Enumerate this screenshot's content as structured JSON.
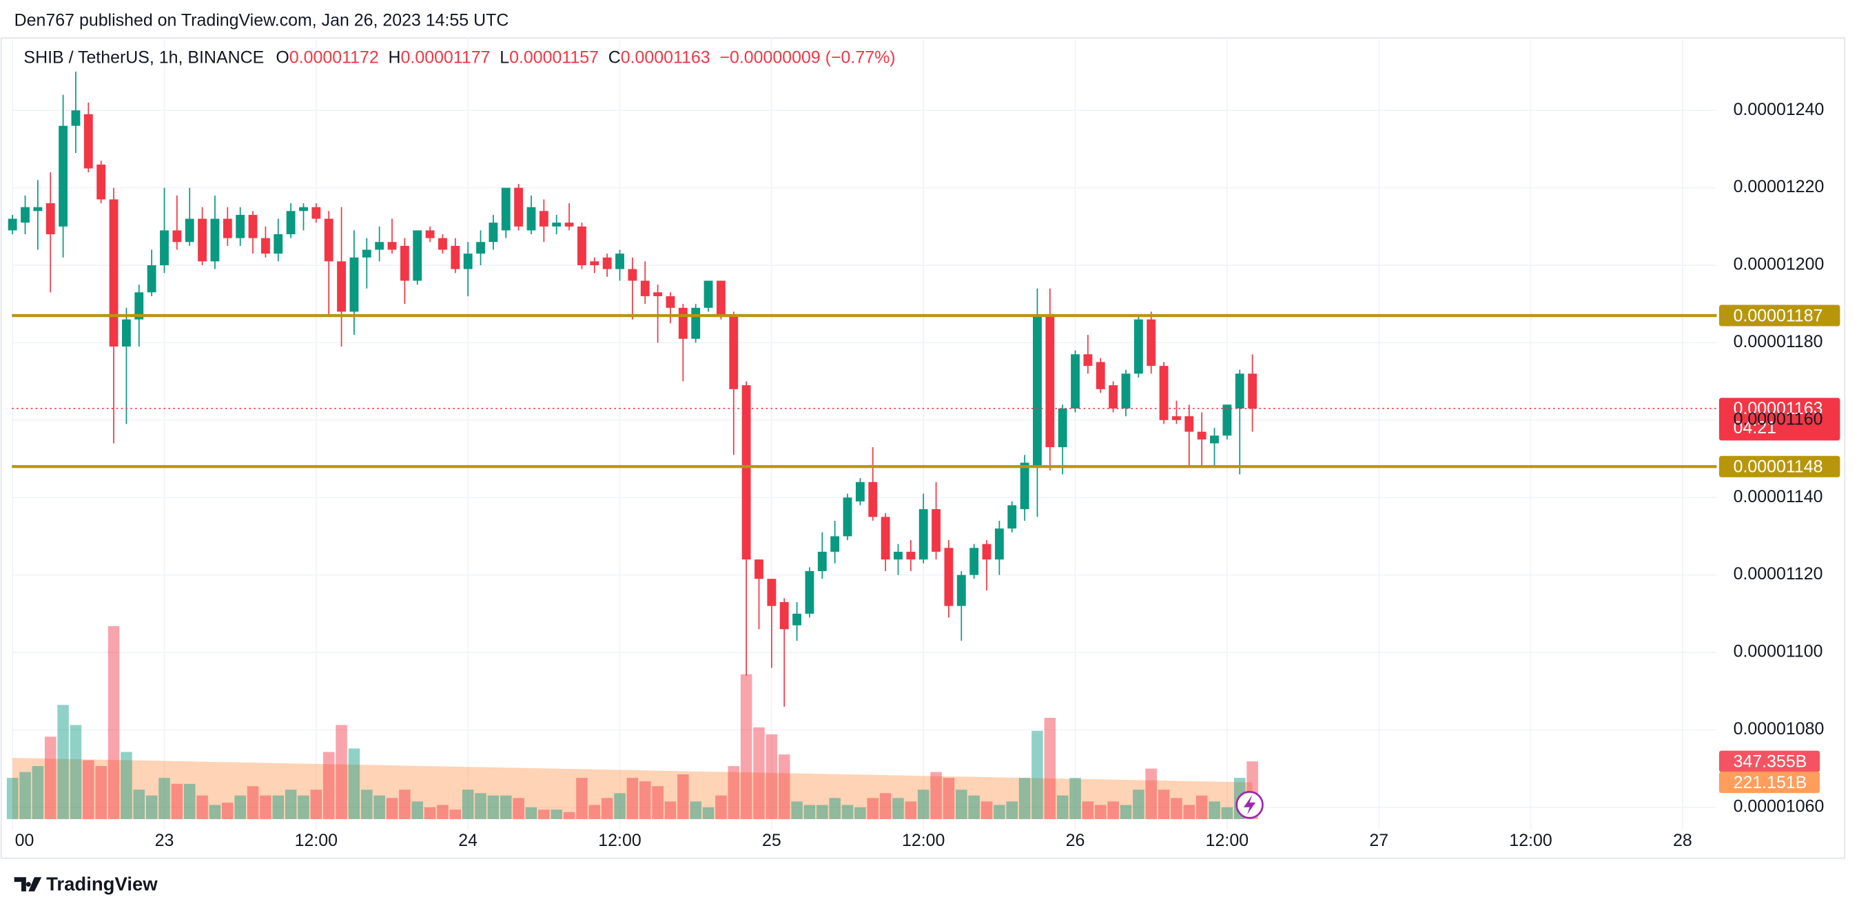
{
  "header": {
    "published": "Den767 published on TradingView.com, Jan 26, 2023 14:55 UTC"
  },
  "chart_data": {
    "type": "candlestick",
    "symbol": "SHIB / TetherUS, 1h, BINANCE",
    "legend": [
      {
        "key": "O",
        "value": "0.00001172"
      },
      {
        "key": "H",
        "value": "0.00001177"
      },
      {
        "key": "L",
        "value": "0.00001157"
      },
      {
        "key": "C",
        "value": "0.00001163"
      }
    ],
    "change": "−0.00000009 (−0.77%)",
    "up_color": "#089981",
    "down_color": "#f23645",
    "grid": true,
    "x": [
      0,
      1,
      2,
      3,
      4,
      5,
      6,
      7,
      8,
      9,
      10,
      11,
      12,
      13,
      14,
      15,
      16,
      17,
      18,
      19,
      20,
      21,
      22,
      23,
      24,
      25,
      26,
      27,
      28,
      29,
      30,
      31,
      32,
      33,
      34,
      35,
      36,
      37,
      38,
      39,
      40,
      41,
      42,
      43,
      44,
      45,
      46,
      47,
      48,
      49,
      50,
      51,
      52,
      53,
      54,
      55,
      56,
      57,
      58,
      59,
      60,
      61,
      62,
      63,
      64,
      65,
      66,
      67,
      68,
      69,
      70,
      71,
      72,
      73,
      74,
      75,
      76,
      77,
      78,
      79,
      80,
      81,
      82,
      83,
      84,
      85,
      86,
      87,
      88,
      89,
      90,
      91,
      92,
      93,
      94,
      95,
      96,
      97,
      98
    ],
    "open": [
      1.209e-05,
      1.211e-05,
      1.214e-05,
      1.216e-05,
      1.21e-05,
      1.236e-05,
      1.239e-05,
      1.226e-05,
      1.217e-05,
      1.179e-05,
      1.186e-05,
      1.193e-05,
      1.2e-05,
      1.209e-05,
      1.206e-05,
      1.212e-05,
      1.201e-05,
      1.212e-05,
      1.207e-05,
      1.213e-05,
      1.207e-05,
      1.203e-05,
      1.208e-05,
      1.214e-05,
      1.215e-05,
      1.212e-05,
      1.201e-05,
      1.188e-05,
      1.202e-05,
      1.204e-05,
      1.206e-05,
      1.205e-05,
      1.196e-05,
      1.209e-05,
      1.207e-05,
      1.205e-05,
      1.199e-05,
      1.203e-05,
      1.206e-05,
      1.209e-05,
      1.22e-05,
      1.209e-05,
      1.214e-05,
      1.21e-05,
      1.211e-05,
      1.21e-05,
      1.201e-05,
      1.202e-05,
      1.199e-05,
      1.199e-05,
      1.196e-05,
      1.193e-05,
      1.192e-05,
      1.189e-05,
      1.181e-05,
      1.189e-05,
      1.196e-05,
      1.187e-05,
      1.169e-05,
      1.124e-05,
      1.119e-05,
      1.113e-05,
      1.107e-05,
      1.11e-05,
      1.121e-05,
      1.126e-05,
      1.13e-05,
      1.139e-05,
      1.144e-05,
      1.135e-05,
      1.124e-05,
      1.126e-05,
      1.124e-05,
      1.137e-05,
      1.127e-05,
      1.112e-05,
      1.12e-05,
      1.128e-05,
      1.124e-05,
      1.132e-05,
      1.137e-05,
      1.148e-05,
      1.187e-05,
      1.153e-05,
      1.163e-05,
      1.177e-05,
      1.175e-05,
      1.169e-05,
      1.163e-05,
      1.172e-05,
      1.186e-05,
      1.174e-05,
      1.161e-05,
      1.161e-05,
      1.157e-05,
      1.154e-05,
      1.156e-05,
      1.163e-05,
      1.172e-05
    ],
    "high": [
      1.213e-05,
      1.218e-05,
      1.222e-05,
      1.224e-05,
      1.244e-05,
      1.25e-05,
      1.242e-05,
      1.227e-05,
      1.22e-05,
      1.189e-05,
      1.195e-05,
      1.204e-05,
      1.22e-05,
      1.218e-05,
      1.22e-05,
      1.215e-05,
      1.218e-05,
      1.215e-05,
      1.215e-05,
      1.214e-05,
      1.21e-05,
      1.212e-05,
      1.216e-05,
      1.216e-05,
      1.216e-05,
      1.214e-05,
      1.215e-05,
      1.209e-05,
      1.207e-05,
      1.21e-05,
      1.212e-05,
      1.207e-05,
      1.209e-05,
      1.21e-05,
      1.208e-05,
      1.207e-05,
      1.206e-05,
      1.209e-05,
      1.213e-05,
      1.22e-05,
      1.221e-05,
      1.218e-05,
      1.217e-05,
      1.213e-05,
      1.216e-05,
      1.211e-05,
      1.202e-05,
      1.203e-05,
      1.204e-05,
      1.202e-05,
      1.201e-05,
      1.195e-05,
      1.193e-05,
      1.19e-05,
      1.19e-05,
      1.196e-05,
      1.196e-05,
      1.188e-05,
      1.17e-05,
      1.124e-05,
      1.119e-05,
      1.114e-05,
      1.113e-05,
      1.122e-05,
      1.131e-05,
      1.134e-05,
      1.141e-05,
      1.145e-05,
      1.153e-05,
      1.136e-05,
      1.128e-05,
      1.129e-05,
      1.141e-05,
      1.144e-05,
      1.129e-05,
      1.121e-05,
      1.128e-05,
      1.129e-05,
      1.134e-05,
      1.139e-05,
      1.151e-05,
      1.194e-05,
      1.194e-05,
      1.164e-05,
      1.178e-05,
      1.182e-05,
      1.176e-05,
      1.17e-05,
      1.173e-05,
      1.187e-05,
      1.188e-05,
      1.175e-05,
      1.165e-05,
      1.164e-05,
      1.162e-05,
      1.158e-05,
      1.164e-05,
      1.173e-05,
      1.177e-05
    ],
    "low": [
      1.208e-05,
      1.208e-05,
      1.204e-05,
      1.193e-05,
      1.202e-05,
      1.229e-05,
      1.224e-05,
      1.216e-05,
      1.154e-05,
      1.159e-05,
      1.179e-05,
      1.192e-05,
      1.198e-05,
      1.204e-05,
      1.205e-05,
      1.2e-05,
      1.199e-05,
      1.205e-05,
      1.205e-05,
      1.203e-05,
      1.202e-05,
      1.201e-05,
      1.207e-05,
      1.209e-05,
      1.211e-05,
      1.187e-05,
      1.179e-05,
      1.182e-05,
      1.194e-05,
      1.201e-05,
      1.203e-05,
      1.19e-05,
      1.195e-05,
      1.206e-05,
      1.203e-05,
      1.198e-05,
      1.192e-05,
      1.2e-05,
      1.204e-05,
      1.207e-05,
      1.209e-05,
      1.208e-05,
      1.206e-05,
      1.208e-05,
      1.209e-05,
      1.199e-05,
      1.198e-05,
      1.197e-05,
      1.196e-05,
      1.186e-05,
      1.19e-05,
      1.18e-05,
      1.185e-05,
      1.17e-05,
      1.18e-05,
      1.188e-05,
      1.186e-05,
      1.151e-05,
      1.094e-05,
      1.106e-05,
      1.096e-05,
      1.086e-05,
      1.103e-05,
      1.109e-05,
      1.119e-05,
      1.123e-05,
      1.129e-05,
      1.138e-05,
      1.134e-05,
      1.121e-05,
      1.12e-05,
      1.121e-05,
      1.123e-05,
      1.124e-05,
      1.109e-05,
      1.103e-05,
      1.119e-05,
      1.116e-05,
      1.12e-05,
      1.131e-05,
      1.134e-05,
      1.135e-05,
      1.147e-05,
      1.146e-05,
      1.162e-05,
      1.172e-05,
      1.167e-05,
      1.162e-05,
      1.161e-05,
      1.171e-05,
      1.172e-05,
      1.159e-05,
      1.159e-05,
      1.148e-05,
      1.148e-05,
      1.148e-05,
      1.155e-05,
      1.146e-05,
      1.157e-05
    ],
    "close": [
      1.212e-05,
      1.215e-05,
      1.215e-05,
      1.208e-05,
      1.236e-05,
      1.24e-05,
      1.225e-05,
      1.217e-05,
      1.179e-05,
      1.186e-05,
      1.193e-05,
      1.2e-05,
      1.209e-05,
      1.206e-05,
      1.212e-05,
      1.201e-05,
      1.212e-05,
      1.207e-05,
      1.213e-05,
      1.207e-05,
      1.203e-05,
      1.208e-05,
      1.214e-05,
      1.215e-05,
      1.212e-05,
      1.201e-05,
      1.188e-05,
      1.202e-05,
      1.204e-05,
      1.206e-05,
      1.204e-05,
      1.196e-05,
      1.209e-05,
      1.207e-05,
      1.204e-05,
      1.199e-05,
      1.203e-05,
      1.206e-05,
      1.211e-05,
      1.22e-05,
      1.21e-05,
      1.215e-05,
      1.21e-05,
      1.211e-05,
      1.21e-05,
      1.2e-05,
      1.2e-05,
      1.199e-05,
      1.203e-05,
      1.196e-05,
      1.192e-05,
      1.192e-05,
      1.189e-05,
      1.181e-05,
      1.189e-05,
      1.196e-05,
      1.187e-05,
      1.168e-05,
      1.124e-05,
      1.119e-05,
      1.112e-05,
      1.106e-05,
      1.11e-05,
      1.121e-05,
      1.126e-05,
      1.13e-05,
      1.14e-05,
      1.144e-05,
      1.135e-05,
      1.124e-05,
      1.126e-05,
      1.124e-05,
      1.137e-05,
      1.126e-05,
      1.112e-05,
      1.12e-05,
      1.127e-05,
      1.124e-05,
      1.132e-05,
      1.138e-05,
      1.149e-05,
      1.187e-05,
      1.153e-05,
      1.163e-05,
      1.177e-05,
      1.174e-05,
      1.168e-05,
      1.163e-05,
      1.172e-05,
      1.186e-05,
      1.174e-05,
      1.16e-05,
      1.16e-05,
      1.157e-05,
      1.155e-05,
      1.156e-05,
      1.164e-05,
      1.172e-05,
      1.163e-05
    ],
    "xlim": [
      -0.05,
      134.7
    ],
    "xticks": [
      {
        "value": 0,
        "label": "00"
      },
      {
        "value": 12,
        "label": "23"
      },
      {
        "value": 24,
        "label": "12:00"
      },
      {
        "value": 36,
        "label": "24"
      },
      {
        "value": 48,
        "label": "12:00"
      },
      {
        "value": 60,
        "label": "25"
      },
      {
        "value": 72,
        "label": "12:00"
      },
      {
        "value": 84,
        "label": "26"
      },
      {
        "value": 96,
        "label": "12:00"
      },
      {
        "value": 108,
        "label": "27"
      },
      {
        "value": 120,
        "label": "12:00"
      },
      {
        "value": 132,
        "label": "28"
      }
    ],
    "ylim": [
      1.0542e-05,
      1.2587e-05
    ],
    "yticks": [
      {
        "value": 1.06e-05,
        "label": "0.00001060"
      },
      {
        "value": 1.08e-05,
        "label": "0.00001080"
      },
      {
        "value": 1.1e-05,
        "label": "0.00001100"
      },
      {
        "value": 1.12e-05,
        "label": "0.00001120"
      },
      {
        "value": 1.14e-05,
        "label": "0.00001140"
      },
      {
        "value": 1.16e-05,
        "label": "0.00001160"
      },
      {
        "value": 1.18e-05,
        "label": "0.00001180"
      },
      {
        "value": 1.2e-05,
        "label": "0.00001200"
      },
      {
        "value": 1.22e-05,
        "label": "0.00001220"
      },
      {
        "value": 1.24e-05,
        "label": "0.00001240"
      }
    ],
    "levels": [
      {
        "value": 1.187e-05,
        "label": "0.00001187",
        "color": "#b8960c"
      },
      {
        "value": 1.148e-05,
        "label": "0.00001148",
        "color": "#b8960c"
      }
    ],
    "last_price": {
      "value": 1.163e-05,
      "label": "0.00001163",
      "countdown": "04:21",
      "color": "#f23645"
    },
    "volume": {
      "ylim": [
        0,
        4700
      ],
      "values": [
        248,
        283,
        319,
        496,
        687,
        566,
        354,
        319,
        1161,
        404,
        177,
        142,
        248,
        212,
        212,
        142,
        85,
        99,
        142,
        198,
        142,
        142,
        177,
        142,
        177,
        404,
        566,
        425,
        177,
        142,
        127,
        177,
        106,
        71,
        85,
        57,
        177,
        156,
        142,
        142,
        127,
        71,
        57,
        57,
        42,
        248,
        85,
        127,
        156,
        248,
        227,
        198,
        106,
        269,
        106,
        71,
        142,
        319,
        871,
        552,
        510,
        389,
        106,
        85,
        85,
        127,
        85,
        71,
        127,
        156,
        127,
        106,
        177,
        283,
        248,
        177,
        142,
        106,
        85,
        106,
        248,
        531,
        609,
        142,
        248,
        106,
        85,
        106,
        85,
        177,
        304,
        177,
        127,
        85,
        142,
        106,
        71,
        248,
        347.355
      ],
      "ma": [
        368,
        366.5,
        365,
        363.5,
        362,
        360.5,
        359,
        357.5,
        356,
        354.5,
        353,
        351.5,
        350,
        348.5,
        347,
        345.5,
        344,
        342.5,
        341,
        339.5,
        338,
        336.5,
        335,
        333.5,
        332,
        330.5,
        329,
        327.5,
        326,
        324.5,
        323,
        321.5,
        320,
        318.5,
        317,
        315.5,
        314,
        312.5,
        311,
        309.5,
        308,
        306.5,
        305,
        303.5,
        302,
        300.5,
        299,
        297.5,
        296,
        294.5,
        293,
        291.5,
        290,
        288.5,
        287,
        285.5,
        284,
        282.5,
        281,
        279.5,
        278,
        276.5,
        275,
        273.5,
        272,
        270.5,
        269,
        267.5,
        266,
        264.5,
        263,
        261.5,
        260,
        258.5,
        257,
        255.5,
        254,
        252.5,
        251,
        249.5,
        248,
        246.5,
        245,
        243.5,
        242,
        240.5,
        239,
        237.5,
        236,
        234.5,
        233,
        231.5,
        230,
        228.5,
        227,
        225.5,
        224,
        222.5,
        221.151
      ],
      "ma_color": "#ff9d5c",
      "last_label": {
        "value": 347.355,
        "label": "347.355B"
      },
      "ma_label": {
        "value": 221.151,
        "label": "221.151B"
      }
    }
  },
  "footer": {
    "brand": "TradingView"
  }
}
